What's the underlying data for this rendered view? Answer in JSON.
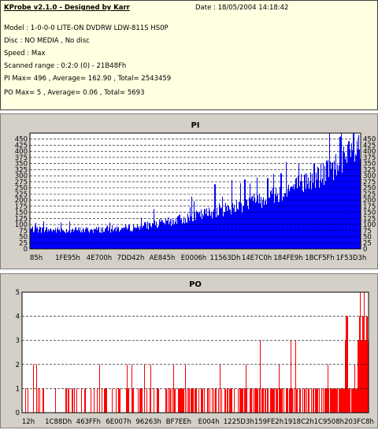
{
  "info": {
    "title": "KProbe v2.1.0 - Designed by Karr",
    "date": "Date : 18/05/2004 14:18:42",
    "model": "Model : 1-0-0-0 LITE-ON DVDRW LDW-811S   HS0P",
    "disc": "Disc : NO MEDIA , No disc",
    "speed": "Speed : Max",
    "range": "Scanned range : 0:2:0 (0) - 21B48Fh",
    "pi_stats": "PI Max= 496 , Average= 162.90 , Total= 2543459",
    "po_stats": "PO Max= 5 , Average= 0.06 , Total= 5693"
  },
  "colors": {
    "pi_bar": "#0000ff",
    "po_bar": "#ff0000",
    "plot_bg": "#ffffff",
    "panel_bg": "#d4d0c8",
    "info_bg": "#ffffe1"
  },
  "chart_data": [
    {
      "type": "bar",
      "title": "PI",
      "ylim": [
        0,
        475
      ],
      "yticks": [
        0,
        25,
        50,
        75,
        100,
        125,
        150,
        175,
        200,
        225,
        250,
        275,
        300,
        325,
        350,
        375,
        400,
        425,
        450
      ],
      "ytick_labels": [
        "0",
        "25",
        "50",
        "75",
        "100",
        "125",
        "150",
        "175",
        "200",
        "225",
        "250",
        "275",
        "300",
        "325",
        "350",
        "375",
        "400",
        "425",
        "450"
      ],
      "xtick_labels": [
        "85h",
        "1FE95h",
        "4E700h",
        "7DD42h",
        "AE845h",
        "E0006h",
        "11563Dh",
        "14E7C0h",
        "184FE9h",
        "1BCF5Fh",
        "1F53D3h"
      ],
      "grid": true,
      "profile_x": [
        0,
        0.1,
        0.2,
        0.3,
        0.4,
        0.5,
        0.6,
        0.7,
        0.8,
        0.9,
        1.0
      ],
      "profile_y": [
        85,
        80,
        82,
        90,
        110,
        140,
        175,
        215,
        265,
        330,
        430
      ],
      "peaks": [
        [
          0.56,
          265
        ],
        [
          0.65,
          285
        ],
        [
          0.72,
          290
        ],
        [
          0.76,
          310
        ],
        [
          0.86,
          350
        ],
        [
          0.94,
          460
        ],
        [
          0.98,
          475
        ]
      ],
      "max": 496,
      "average": 162.9
    },
    {
      "type": "bar",
      "title": "PO",
      "ylim": [
        0,
        5
      ],
      "yticks": [
        0,
        1,
        2,
        3,
        4,
        5
      ],
      "ytick_labels": [
        "0",
        "1",
        "2",
        "3",
        "4",
        "5"
      ],
      "xtick_labels": [
        "12h",
        "1C88Dh",
        "463FFh",
        "6E007h",
        "96263h",
        "BF7EEh",
        "E004h",
        "1225D3h",
        "159FE2h",
        "1918C2h",
        "1C9508h",
        "203FC8h"
      ],
      "grid": true,
      "max": 5,
      "average": 0.06
    }
  ]
}
